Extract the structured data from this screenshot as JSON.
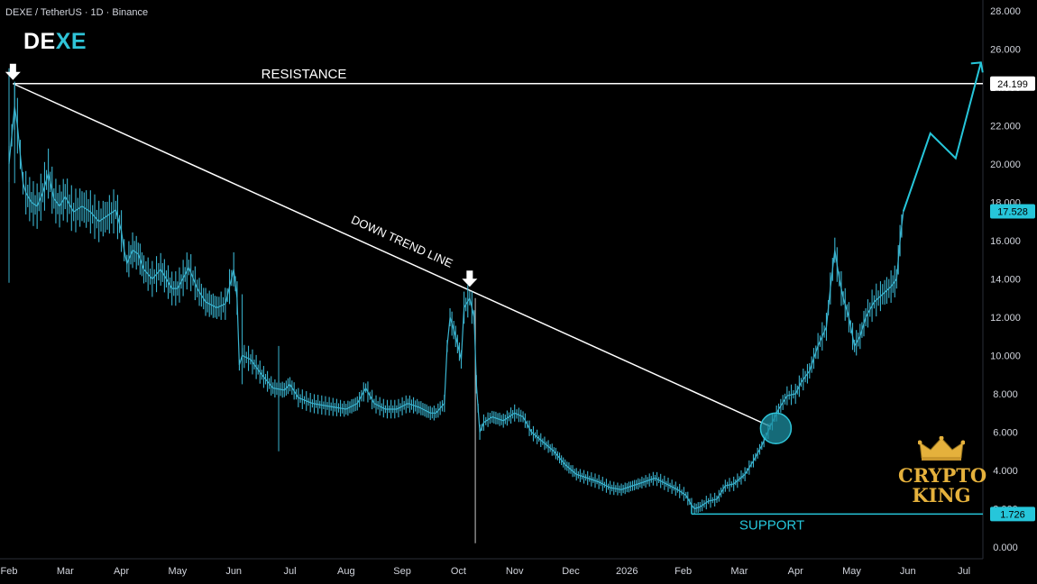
{
  "header": {
    "title": "DEXE / TetherUS · 1D · Binance"
  },
  "logo": {
    "part1": "DE",
    "part2": "XE"
  },
  "brand": {
    "line1": "CRYPTO",
    "line2": "KING",
    "icon": "crown-icon"
  },
  "colors": {
    "background": "#000000",
    "price": "#3ab4d0",
    "white": "#ffffff",
    "accent": "#26c6da",
    "gold": "#e5b13c"
  },
  "chart_data": {
    "type": "line",
    "title": "DEXE / TetherUS · 1D · Binance",
    "xlabel": "",
    "ylabel": "",
    "ylim": [
      0,
      28
    ],
    "grid": false,
    "y_ticks": [
      "0.000",
      "2.000",
      "4.000",
      "6.000",
      "8.000",
      "10.000",
      "12.000",
      "14.000",
      "16.000",
      "18.000",
      "20.000",
      "22.000",
      "24.000",
      "26.000",
      "28.000"
    ],
    "x_ticks": [
      {
        "label": "Feb",
        "t": 0
      },
      {
        "label": "Mar",
        "t": 1
      },
      {
        "label": "Apr",
        "t": 2
      },
      {
        "label": "May",
        "t": 3
      },
      {
        "label": "Jun",
        "t": 4
      },
      {
        "label": "Jul",
        "t": 5
      },
      {
        "label": "Aug",
        "t": 6
      },
      {
        "label": "Sep",
        "t": 7
      },
      {
        "label": "Oct",
        "t": 8
      },
      {
        "label": "Nov",
        "t": 9
      },
      {
        "label": "Dec",
        "t": 10
      },
      {
        "label": "2026",
        "t": 11
      },
      {
        "label": "Feb",
        "t": 12
      },
      {
        "label": "Mar",
        "t": 13
      },
      {
        "label": "Apr",
        "t": 14
      },
      {
        "label": "May",
        "t": 15
      },
      {
        "label": "Jun",
        "t": 16
      },
      {
        "label": "Jul",
        "t": 17
      }
    ],
    "series": [
      {
        "points": [
          [
            0.0,
            20.0
          ],
          [
            0.05,
            21.5
          ],
          [
            0.1,
            23.0
          ],
          [
            0.15,
            22.0
          ],
          [
            0.2,
            20.5
          ],
          [
            0.25,
            19.0
          ],
          [
            0.3,
            18.5
          ],
          [
            0.4,
            18.0
          ],
          [
            0.5,
            17.8
          ],
          [
            0.6,
            18.5
          ],
          [
            0.7,
            19.5
          ],
          [
            0.8,
            18.2
          ],
          [
            0.9,
            17.8
          ],
          [
            1.0,
            18.3
          ],
          [
            1.15,
            17.5
          ],
          [
            1.3,
            17.8
          ],
          [
            1.45,
            17.5
          ],
          [
            1.6,
            17.0
          ],
          [
            1.75,
            17.3
          ],
          [
            1.9,
            17.6
          ],
          [
            2.0,
            16.5
          ],
          [
            2.05,
            15.5
          ],
          [
            2.1,
            14.8
          ],
          [
            2.2,
            15.5
          ],
          [
            2.3,
            15.3
          ],
          [
            2.4,
            14.5
          ],
          [
            2.55,
            14.0
          ],
          [
            2.7,
            14.5
          ],
          [
            2.9,
            13.5
          ],
          [
            3.0,
            13.5
          ],
          [
            3.2,
            14.6
          ],
          [
            3.35,
            13.5
          ],
          [
            3.5,
            12.8
          ],
          [
            3.7,
            12.5
          ],
          [
            3.85,
            12.7
          ],
          [
            4.0,
            14.5
          ],
          [
            4.06,
            13.0
          ],
          [
            4.1,
            9.5
          ],
          [
            4.15,
            10.0
          ],
          [
            4.3,
            9.8
          ],
          [
            4.5,
            9.0
          ],
          [
            4.7,
            8.3
          ],
          [
            4.9,
            8.2
          ],
          [
            5.0,
            8.5
          ],
          [
            5.15,
            7.8
          ],
          [
            5.4,
            7.5
          ],
          [
            5.6,
            7.4
          ],
          [
            5.8,
            7.3
          ],
          [
            6.0,
            7.2
          ],
          [
            6.2,
            7.5
          ],
          [
            6.35,
            8.3
          ],
          [
            6.5,
            7.5
          ],
          [
            6.7,
            7.2
          ],
          [
            6.9,
            7.2
          ],
          [
            7.1,
            7.5
          ],
          [
            7.3,
            7.3
          ],
          [
            7.5,
            7.0
          ],
          [
            7.6,
            7.0
          ],
          [
            7.75,
            7.5
          ],
          [
            7.8,
            10.5
          ],
          [
            7.85,
            12.0
          ],
          [
            7.95,
            11.0
          ],
          [
            8.05,
            9.8
          ],
          [
            8.1,
            12.5
          ],
          [
            8.2,
            13.0
          ],
          [
            8.28,
            12.0
          ],
          [
            8.32,
            8.5
          ],
          [
            8.38,
            6.0
          ],
          [
            8.45,
            6.5
          ],
          [
            8.6,
            6.8
          ],
          [
            8.8,
            6.6
          ],
          [
            9.0,
            7.0
          ],
          [
            9.15,
            6.8
          ],
          [
            9.3,
            6.0
          ],
          [
            9.5,
            5.5
          ],
          [
            9.7,
            5.0
          ],
          [
            9.9,
            4.3
          ],
          [
            10.1,
            3.8
          ],
          [
            10.3,
            3.6
          ],
          [
            10.5,
            3.4
          ],
          [
            10.7,
            3.1
          ],
          [
            10.9,
            3.0
          ],
          [
            11.1,
            3.2
          ],
          [
            11.3,
            3.4
          ],
          [
            11.5,
            3.6
          ],
          [
            11.7,
            3.3
          ],
          [
            11.9,
            3.0
          ],
          [
            12.05,
            2.7
          ],
          [
            12.15,
            2.2
          ],
          [
            12.2,
            2.0
          ],
          [
            12.3,
            2.1
          ],
          [
            12.45,
            2.4
          ],
          [
            12.6,
            2.5
          ],
          [
            12.75,
            3.2
          ],
          [
            12.9,
            3.3
          ],
          [
            13.1,
            3.8
          ],
          [
            13.25,
            4.5
          ],
          [
            13.4,
            5.3
          ],
          [
            13.55,
            6.3
          ],
          [
            13.7,
            7.2
          ],
          [
            13.85,
            7.9
          ],
          [
            14.0,
            8.0
          ],
          [
            14.1,
            8.6
          ],
          [
            14.25,
            9.2
          ],
          [
            14.4,
            10.5
          ],
          [
            14.55,
            11.5
          ],
          [
            14.62,
            13.5
          ],
          [
            14.7,
            15.5
          ],
          [
            14.78,
            14.0
          ],
          [
            14.85,
            13.0
          ],
          [
            14.95,
            12.0
          ],
          [
            15.05,
            10.5
          ],
          [
            15.15,
            11.0
          ],
          [
            15.25,
            12.0
          ],
          [
            15.4,
            12.8
          ],
          [
            15.55,
            13.2
          ],
          [
            15.7,
            13.6
          ],
          [
            15.8,
            14.0
          ],
          [
            15.86,
            16.0
          ],
          [
            15.92,
            17.528
          ]
        ]
      }
    ],
    "resistance": {
      "label": "RESISTANCE",
      "value": 24.199,
      "value_label": "24.199"
    },
    "support": {
      "label": "SUPPORT",
      "value": 1.726,
      "value_label": "1.726"
    },
    "current_price": {
      "value": 17.528,
      "value_label": "17.528"
    },
    "trend_line": {
      "label": "DOWN TREND LINE",
      "from": [
        0.07,
        24.2
      ],
      "to": [
        13.55,
        6.3
      ]
    },
    "projection": [
      [
        15.92,
        17.528
      ],
      [
        16.4,
        21.6
      ],
      [
        16.85,
        20.3
      ],
      [
        17.3,
        25.3
      ]
    ],
    "arrow_markers": [
      [
        0.07,
        24.2
      ],
      [
        8.2,
        13.4
      ]
    ],
    "breakout_marker": [
      13.65,
      6.2
    ]
  }
}
